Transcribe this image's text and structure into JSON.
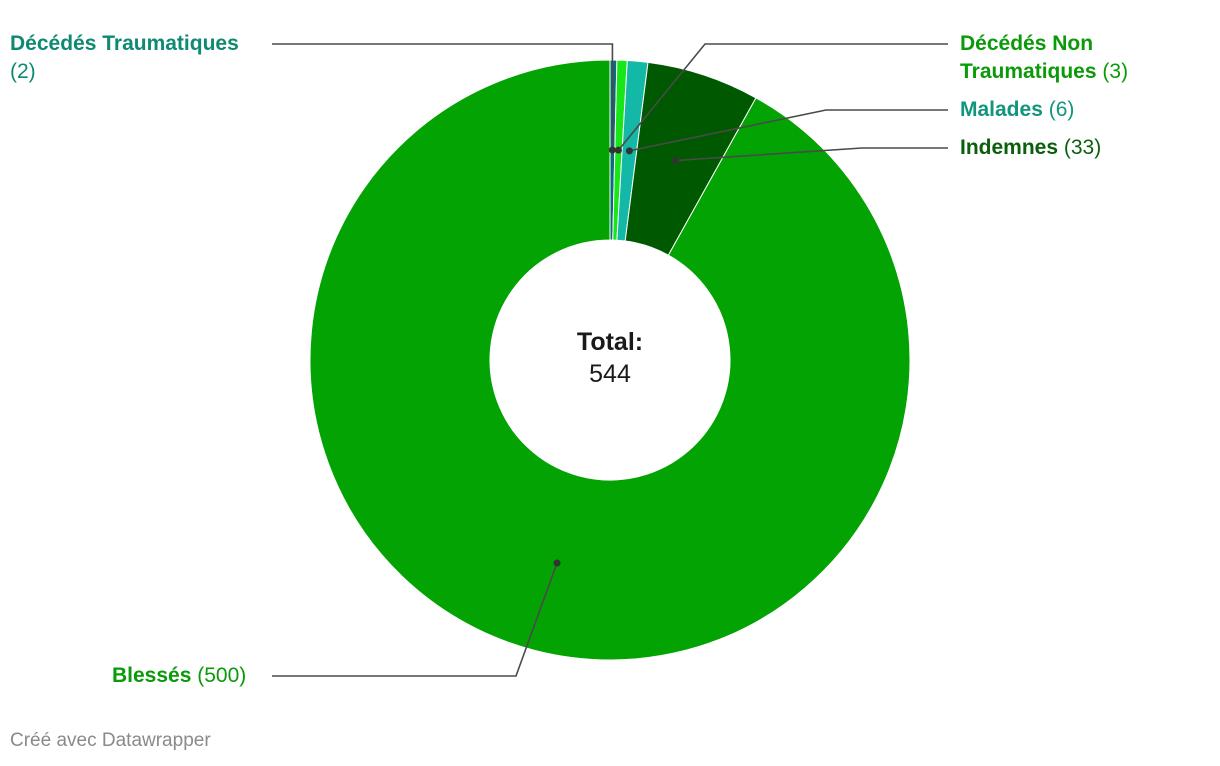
{
  "chart_data": {
    "type": "pie",
    "donut": true,
    "categories": [
      "Décédés Traumatiques",
      "Décédés Non Traumatiques",
      "Malades",
      "Indemnes",
      "Blessés"
    ],
    "values": [
      2,
      3,
      6,
      33,
      500
    ],
    "colors": [
      "#0b6b7a",
      "#17e617",
      "#13b8a6",
      "#005900",
      "#02a302"
    ],
    "label_colors": [
      "#0e8a73",
      "#0a9a0a",
      "#12957f",
      "#0b5e0b",
      "#0a9a0a"
    ],
    "center": {
      "title": "Total:",
      "value": "544"
    }
  },
  "labels": {
    "decedes_traumatiques": {
      "name": "Décédés Traumatiques",
      "count": "(2)"
    },
    "decedes_non_traumatiques": {
      "name_line1": "Décédés Non",
      "name_line2": "Traumatiques",
      "count": "(3)"
    },
    "malades": {
      "name": "Malades",
      "count": "(6)"
    },
    "indemnes": {
      "name": "Indemnes",
      "count": "(33)"
    },
    "blesses": {
      "name": "Blessés",
      "count": "(500)"
    }
  },
  "footer": {
    "credit": "Créé avec Datawrapper"
  }
}
